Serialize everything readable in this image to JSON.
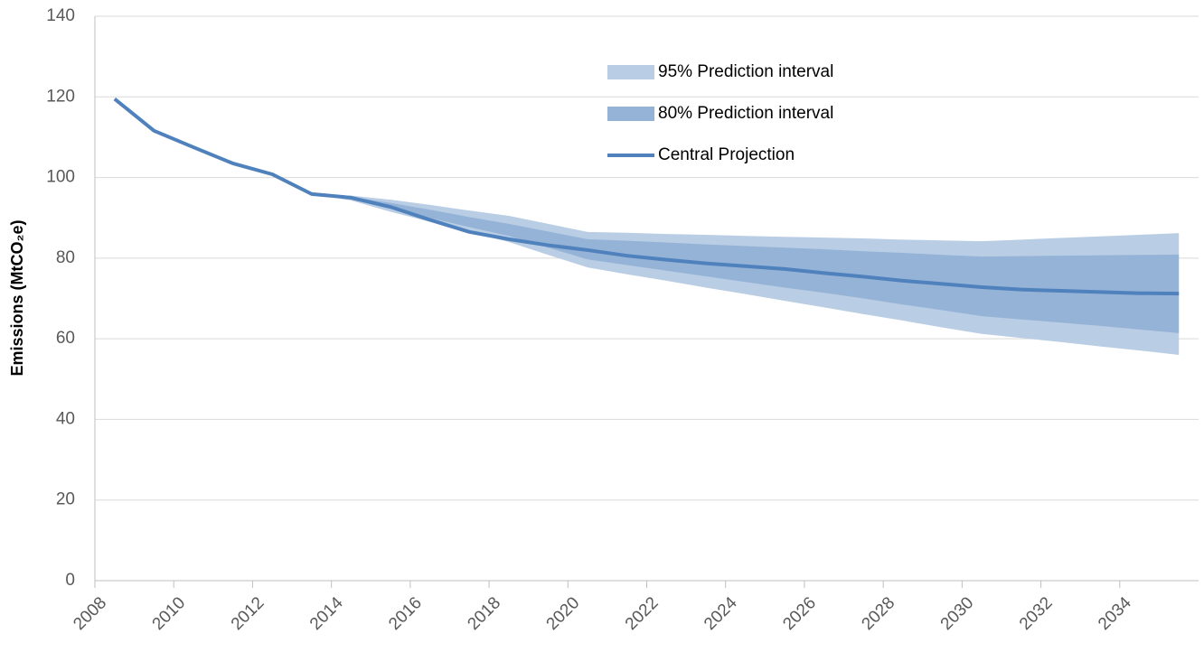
{
  "chart_data": {
    "type": "band-line",
    "y_label": "Emissions (MtCO₂e)",
    "x": [
      2008.5,
      2009.5,
      2010.5,
      2011.5,
      2012.5,
      2013.5,
      2014.5,
      2015.5,
      2016.5,
      2017.5,
      2018.5,
      2019.5,
      2020.5,
      2021.5,
      2022.5,
      2023.5,
      2024.5,
      2025.5,
      2026.5,
      2027.5,
      2028.5,
      2029.5,
      2030.5,
      2031.5,
      2032.5,
      2033.5,
      2034.5,
      2035.5
    ],
    "xlim": [
      2008,
      2036
    ],
    "xticks": [
      2008,
      2010,
      2012,
      2014,
      2016,
      2018,
      2020,
      2022,
      2024,
      2026,
      2028,
      2030,
      2032,
      2034
    ],
    "ylim": [
      0,
      140
    ],
    "yticks": [
      0,
      20,
      40,
      60,
      80,
      100,
      120,
      140
    ],
    "grid": true,
    "legend": "top",
    "bands": [
      {
        "name": "95% Prediction interval",
        "color": "#b9cde5",
        "upper": [
          null,
          null,
          null,
          null,
          null,
          95.9,
          95.5,
          94.5,
          93.2,
          91.8,
          90.5,
          88.5,
          86.5,
          86.3,
          86.0,
          85.8,
          85.5,
          85.3,
          85.1,
          84.9,
          84.6,
          84.4,
          84.2,
          84.6,
          85.0,
          85.4,
          85.8,
          86.2
        ],
        "lower": [
          null,
          null,
          null,
          null,
          null,
          95.9,
          94.3,
          91.5,
          89.0,
          86.5,
          84.0,
          80.8,
          77.7,
          76.0,
          74.4,
          72.7,
          71.1,
          69.4,
          67.8,
          66.1,
          64.5,
          62.8,
          61.2,
          60.2,
          59.2,
          58.1,
          57.1,
          56.0
        ]
      },
      {
        "name": "80% Prediction interval",
        "color": "#95b3d7",
        "upper": [
          null,
          null,
          null,
          null,
          null,
          95.9,
          95.2,
          93.7,
          92.0,
          90.2,
          88.5,
          86.6,
          84.7,
          84.3,
          83.9,
          83.4,
          83.0,
          82.6,
          82.2,
          81.7,
          81.3,
          80.8,
          80.4,
          80.5,
          80.6,
          80.7,
          80.8,
          80.9
        ],
        "lower": [
          null,
          null,
          null,
          null,
          null,
          95.9,
          94.6,
          92.3,
          90.0,
          87.7,
          85.5,
          82.6,
          79.7,
          78.3,
          76.9,
          75.5,
          74.1,
          72.7,
          71.4,
          70.0,
          68.5,
          67.1,
          65.6,
          64.8,
          64.0,
          63.2,
          62.3,
          61.4
        ]
      }
    ],
    "series": [
      {
        "name": "Central Projection",
        "color": "#4f81bd",
        "values": [
          119.5,
          111.6,
          107.5,
          103.5,
          100.8,
          95.9,
          95.0,
          92.7,
          89.5,
          86.5,
          84.7,
          83.2,
          82.0,
          80.6,
          79.6,
          78.7,
          78.0,
          77.3,
          76.3,
          75.4,
          74.4,
          73.6,
          72.8,
          72.2,
          71.9,
          71.6,
          71.3,
          71.2
        ]
      }
    ]
  }
}
